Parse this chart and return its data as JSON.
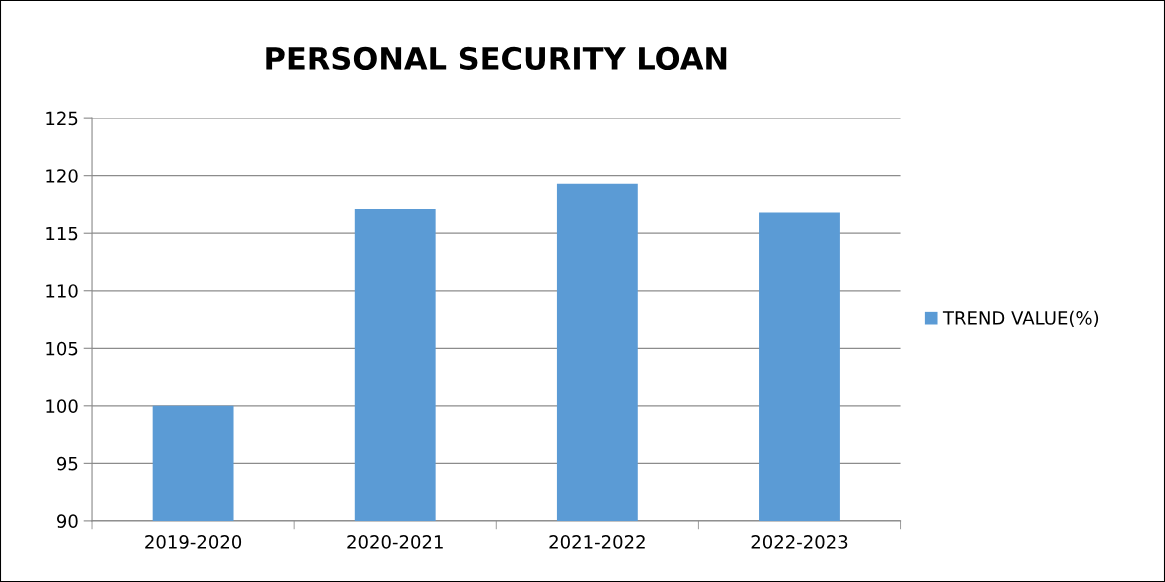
{
  "chart_data": {
    "type": "bar",
    "title": "PERSONAL SECURITY LOAN",
    "categories": [
      "2019-2020",
      "2020-2021",
      "2021-2022",
      "2022-2023"
    ],
    "series": [
      {
        "name": "TREND VALUE(%)",
        "color": "#5b9bd5",
        "values": [
          100,
          117.1,
          119.3,
          116.8
        ]
      }
    ],
    "ylim": [
      90,
      125
    ],
    "yticks": [
      90,
      95,
      100,
      105,
      110,
      115,
      120,
      125
    ],
    "grid": "y",
    "legend": "right"
  }
}
